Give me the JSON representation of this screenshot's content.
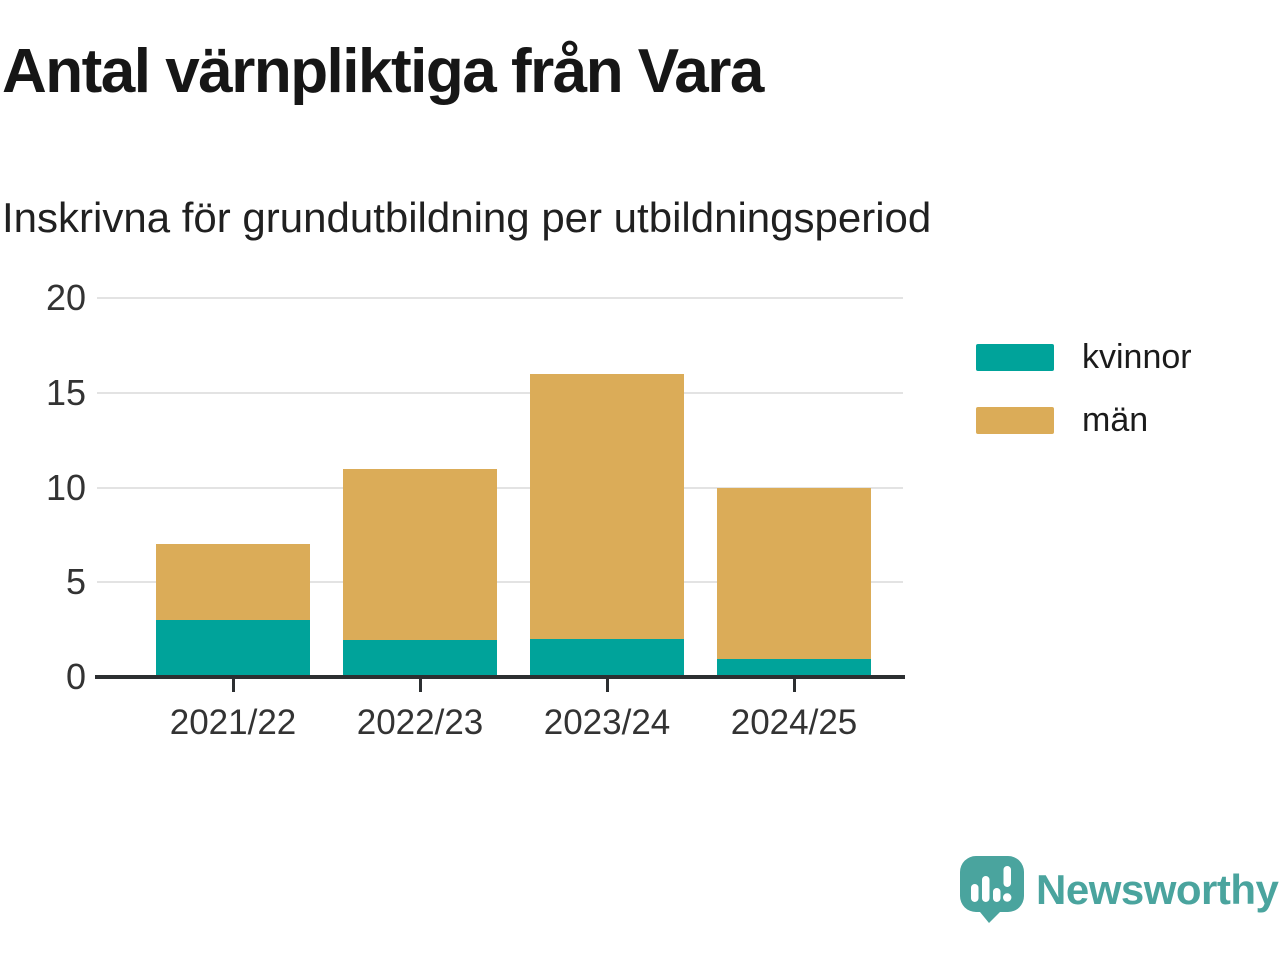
{
  "header": {
    "title": "Antal värnpliktiga från Vara",
    "subtitle": "Inskrivna för grundutbildning per utbildningsperiod"
  },
  "chart_data": {
    "type": "bar",
    "stacked": true,
    "title": "Antal värnpliktiga från Vara",
    "subtitle": "Inskrivna för grundutbildning per utbildningsperiod",
    "categories": [
      "2021/22",
      "2022/23",
      "2023/24",
      "2024/25"
    ],
    "series": [
      {
        "name": "kvinnor",
        "color": "#00a39a",
        "values": [
          3,
          2,
          2,
          1
        ]
      },
      {
        "name": "män",
        "color": "#dbac58",
        "values": [
          4,
          9,
          14,
          9
        ]
      }
    ],
    "totals": [
      7,
      11,
      16,
      10
    ],
    "xlabel": "",
    "ylabel": "",
    "ylim": [
      0,
      20
    ],
    "yticks": [
      0,
      5,
      10,
      15,
      20
    ],
    "grid": "horizontal",
    "legend_position": "right"
  },
  "footer": {
    "brand": "Newsworthy"
  },
  "colors": {
    "kvinnor": "#00a39a",
    "man": "#dbac58",
    "brand_teal": "#4aa49e",
    "axis": "#2c2f31",
    "gridline": "#e3e3e3"
  }
}
